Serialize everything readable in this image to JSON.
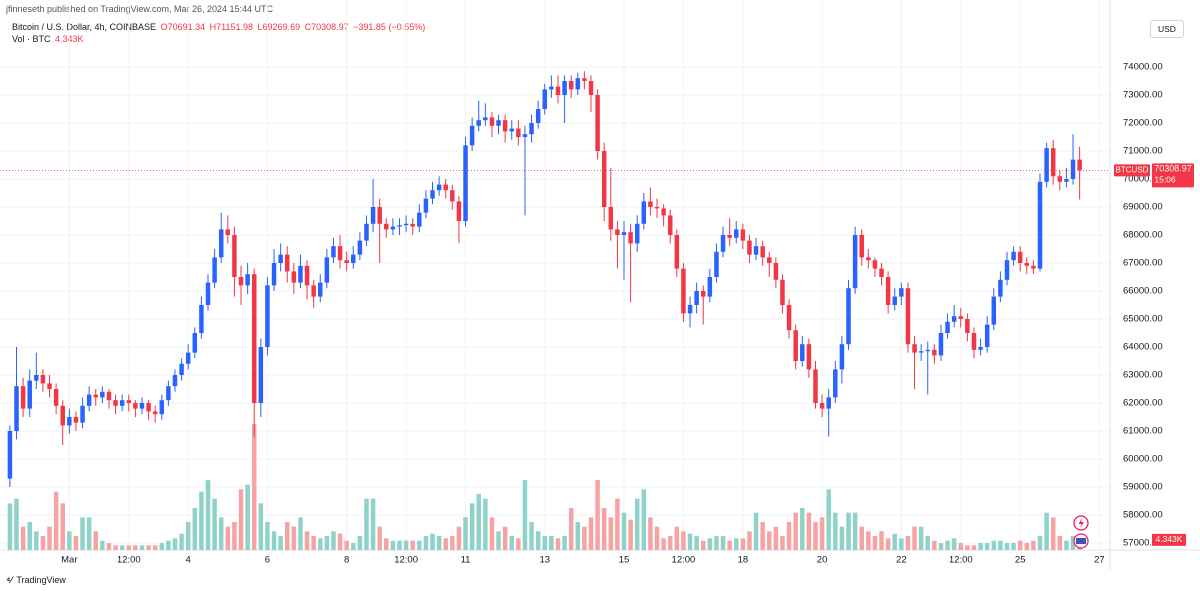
{
  "chart_data": {
    "type": "candlestick",
    "attribution": "jfinneseth published on TradingView.com, Mar 26, 2024 15:44 UTC",
    "title": "Bitcoin / U.S. Dollar, 4h, COINBASE",
    "ohlc_text": [
      "O70691.34",
      "H71151.98",
      "L69269.69",
      "C70308.97",
      "−391.85 (−0.55%)"
    ],
    "volume_title": "Vol · BTC",
    "volume_label": "4.343K",
    "currency": "USD",
    "symbol": "BTCUSD",
    "last_price_label": "70308.97",
    "countdown": "15:06",
    "footer": "TradingView",
    "up_color": "#2962ff",
    "down_color": "#f23645",
    "volume_up_color": "#8fd3c8",
    "volume_down_color": "#f5a3a3",
    "grid": true,
    "xlim": [
      -1.5,
      166.6
    ],
    "ylim": [
      56750,
      76036
    ],
    "volume_lim": [
      0,
      60
    ],
    "yticks": [
      {
        "value": 57000,
        "label": "57000.00"
      },
      {
        "value": 58000,
        "label": "58000.00"
      },
      {
        "value": 59000,
        "label": "59000.00"
      },
      {
        "value": 60000,
        "label": "60000.00"
      },
      {
        "value": 61000,
        "label": "61000.00"
      },
      {
        "value": 62000,
        "label": "62000.00"
      },
      {
        "value": 63000,
        "label": "63000.00"
      },
      {
        "value": 64000,
        "label": "64000.00"
      },
      {
        "value": 65000,
        "label": "65000.00"
      },
      {
        "value": 66000,
        "label": "66000.00"
      },
      {
        "value": 67000,
        "label": "67000.00"
      },
      {
        "value": 68000,
        "label": "68000.00"
      },
      {
        "value": 69000,
        "label": "69000.00"
      },
      {
        "value": 70000,
        "label": "70000.00"
      },
      {
        "value": 71000,
        "label": "71000.00"
      },
      {
        "value": 72000,
        "label": "72000.00"
      },
      {
        "value": 73000,
        "label": "73000.00"
      },
      {
        "value": 74000,
        "label": "74000.00"
      }
    ],
    "xticks": [
      {
        "value": 9,
        "label": "Mar"
      },
      {
        "value": 18,
        "label": "12:00"
      },
      {
        "value": 27,
        "label": "4"
      },
      {
        "value": 39,
        "label": "6"
      },
      {
        "value": 51,
        "label": "8"
      },
      {
        "value": 60,
        "label": "12:00"
      },
      {
        "value": 69,
        "label": "11"
      },
      {
        "value": 81,
        "label": "13"
      },
      {
        "value": 93,
        "label": "15"
      },
      {
        "value": 102,
        "label": "12:00"
      },
      {
        "value": 111,
        "label": "18"
      },
      {
        "value": 123,
        "label": "20"
      },
      {
        "value": 135,
        "label": "22"
      },
      {
        "value": 144,
        "label": "12:00"
      },
      {
        "value": 153,
        "label": "25"
      },
      {
        "value": 165,
        "label": "27"
      }
    ],
    "open": [
      59300,
      61000,
      62600,
      61800,
      62800,
      63000,
      62700,
      62500,
      61900,
      61200,
      61500,
      61300,
      61900,
      62300,
      62200,
      62400,
      62100,
      61900,
      62100,
      62000,
      61800,
      62000,
      61700,
      61600,
      62100,
      62600,
      63000,
      63400,
      63800,
      64500,
      65500,
      66300,
      67200,
      68200,
      68000,
      66500,
      66200,
      66600,
      62000,
      64000,
      66200,
      67000,
      67300,
      66700,
      66300,
      66900,
      66200,
      65800,
      66300,
      67200,
      67600,
      67100,
      67000,
      67300,
      67800,
      68400,
      69000,
      68400,
      68200,
      68300,
      68350,
      68400,
      68300,
      68800,
      69300,
      69600,
      69800,
      69600,
      69200,
      68500,
      71200,
      71900,
      72100,
      72200,
      71900,
      72100,
      71700,
      71800,
      71500,
      71600,
      72000,
      72500,
      73200,
      73300,
      73000,
      73500,
      73200,
      73600,
      73500,
      73000,
      71000,
      69000,
      68200,
      68000,
      68100,
      67700,
      68400,
      69200,
      69000,
      68950,
      68700,
      68000,
      66800,
      65200,
      65500,
      66000,
      65800,
      66500,
      67400,
      68000,
      67900,
      68200,
      67800,
      67300,
      67600,
      67200,
      67000,
      66400,
      65500,
      64600,
      63500,
      64100,
      63200,
      62000,
      61800,
      62200,
      63200,
      64100,
      66100,
      68000,
      67200,
      67100,
      66800,
      66500,
      65500,
      65800,
      66100,
      64100,
      63800,
      63850,
      63900,
      63700,
      64500,
      64900,
      65100,
      65000,
      64500,
      63900,
      64000,
      64800,
      65800,
      66400,
      67100,
      67400,
      67000,
      66900,
      66800,
      69900,
      71100,
      70100,
      69900,
      70000,
      70691.34
    ],
    "high": [
      61200,
      64000,
      62900,
      63200,
      63800,
      63200,
      63000,
      62700,
      62100,
      61800,
      61700,
      62200,
      62600,
      62500,
      62600,
      62500,
      62300,
      62300,
      62300,
      62100,
      62200,
      62100,
      61900,
      62300,
      62800,
      63200,
      63600,
      64100,
      64700,
      65800,
      66600,
      67500,
      68800,
      68700,
      68300,
      66900,
      67000,
      66800,
      64300,
      66500,
      67500,
      67700,
      67600,
      67000,
      67300,
      67100,
      66400,
      66600,
      67500,
      67900,
      68000,
      67400,
      67600,
      68100,
      68700,
      70000,
      69300,
      68600,
      68600,
      68600,
      68700,
      68600,
      69100,
      69600,
      69900,
      70100,
      70000,
      69800,
      69400,
      71500,
      72200,
      72800,
      72700,
      72400,
      72300,
      72300,
      72100,
      72100,
      71900,
      72300,
      72800,
      73400,
      73700,
      73700,
      73700,
      73700,
      73800,
      73850,
      73700,
      73200,
      71300,
      70400,
      68500,
      68500,
      68400,
      68700,
      69500,
      69700,
      69300,
      69100,
      68900,
      68200,
      67000,
      65800,
      66300,
      66200,
      66800,
      67700,
      68300,
      68600,
      68500,
      68400,
      68000,
      67900,
      67800,
      67400,
      67200,
      66600,
      65700,
      64800,
      64400,
      64300,
      63500,
      62300,
      62500,
      63500,
      64400,
      66400,
      68300,
      68200,
      67500,
      67200,
      67000,
      66700,
      66100,
      66300,
      66300,
      64400,
      64100,
      64200,
      64100,
      64800,
      65200,
      65500,
      65400,
      65200,
      64700,
      64300,
      65100,
      66100,
      66700,
      67400,
      67600,
      67600,
      67200,
      67100,
      70200,
      71300,
      71400,
      70300,
      70400,
      71600,
      71151.98
    ],
    "low": [
      59000,
      60700,
      61500,
      61500,
      62500,
      62400,
      62200,
      61600,
      60500,
      60900,
      61000,
      61100,
      61700,
      61900,
      62000,
      61800,
      61600,
      61700,
      61700,
      61500,
      61600,
      61400,
      61300,
      61400,
      61900,
      62400,
      62800,
      63200,
      63600,
      64300,
      65300,
      66100,
      67000,
      67700,
      65800,
      65500,
      65900,
      60800,
      61500,
      63700,
      66000,
      66700,
      66300,
      65900,
      66100,
      65700,
      65400,
      65600,
      66100,
      67000,
      66800,
      66700,
      66800,
      67100,
      67600,
      68100,
      67000,
      67900,
      68000,
      68000,
      68100,
      68000,
      68100,
      68600,
      69100,
      69400,
      69300,
      68900,
      67700,
      68300,
      71000,
      71700,
      71900,
      71500,
      71600,
      71300,
      71400,
      71200,
      68700,
      71300,
      71800,
      72300,
      72900,
      72700,
      72000,
      72900,
      73000,
      73200,
      72400,
      70700,
      68500,
      67800,
      66800,
      66400,
      65600,
      67400,
      68200,
      68700,
      68600,
      68300,
      67700,
      66500,
      64900,
      64700,
      65200,
      64800,
      65600,
      66300,
      67200,
      67600,
      67700,
      67500,
      67000,
      67100,
      66900,
      66500,
      66100,
      65200,
      64300,
      63200,
      63300,
      62900,
      61800,
      61500,
      60800,
      62000,
      62700,
      63900,
      65900,
      66900,
      66800,
      66500,
      66200,
      65200,
      65300,
      65500,
      63800,
      62500,
      63500,
      62300,
      63400,
      63500,
      64300,
      64700,
      64700,
      64200,
      63600,
      63700,
      63800,
      64600,
      65600,
      66200,
      66900,
      66700,
      66600,
      66600,
      66700,
      69700,
      69800,
      69600,
      69700,
      69800,
      69269.69
    ],
    "close": [
      61000,
      62600,
      61800,
      62800,
      63000,
      62700,
      62500,
      61900,
      61200,
      61500,
      61300,
      61900,
      62300,
      62200,
      62400,
      62100,
      61900,
      62100,
      62000,
      61800,
      62000,
      61700,
      61600,
      62100,
      62600,
      63000,
      63400,
      63800,
      64500,
      65500,
      66300,
      67200,
      68200,
      68000,
      66500,
      66200,
      66600,
      62000,
      64000,
      66200,
      67000,
      67300,
      66700,
      66300,
      66900,
      66200,
      65800,
      66300,
      67200,
      67600,
      67100,
      67000,
      67300,
      67800,
      68400,
      69000,
      68400,
      68200,
      68300,
      68350,
      68400,
      68300,
      68800,
      69300,
      69600,
      69800,
      69600,
      69200,
      68500,
      71200,
      71900,
      72100,
      72200,
      71900,
      72100,
      71700,
      71800,
      71500,
      71600,
      72000,
      72500,
      73200,
      73300,
      73000,
      73500,
      73200,
      73600,
      73500,
      73000,
      71000,
      69000,
      68200,
      68000,
      68100,
      67700,
      68400,
      69200,
      69000,
      68950,
      68700,
      68000,
      66800,
      65200,
      65500,
      66000,
      65800,
      66500,
      67400,
      68000,
      67900,
      68200,
      67800,
      67300,
      67600,
      67200,
      67000,
      66400,
      65500,
      64600,
      63500,
      64100,
      63200,
      62000,
      61800,
      62200,
      63200,
      64100,
      66100,
      68000,
      67200,
      67100,
      66800,
      66500,
      65500,
      65800,
      66100,
      64100,
      63800,
      63850,
      63900,
      63700,
      64500,
      64900,
      65100,
      65000,
      64500,
      63900,
      64000,
      64800,
      65800,
      66400,
      67100,
      67400,
      67000,
      66900,
      66800,
      69900,
      71100,
      70100,
      69900,
      70000,
      70691.34,
      70308.97
    ],
    "volume": [
      20,
      22,
      10,
      12,
      8,
      6,
      10,
      25,
      20,
      8,
      6,
      14,
      14,
      8,
      4,
      3,
      2,
      2,
      2,
      2,
      2,
      2,
      2,
      3,
      4,
      5,
      7,
      12,
      18,
      25,
      30,
      22,
      14,
      10,
      12,
      26,
      28,
      54,
      20,
      12,
      8,
      6,
      12,
      10,
      14,
      8,
      6,
      5,
      6,
      8,
      7,
      4,
      3,
      6,
      22,
      22,
      10,
      5,
      4,
      4,
      4,
      4,
      4,
      6,
      7,
      6,
      5,
      6,
      10,
      14,
      20,
      24,
      22,
      14,
      8,
      10,
      6,
      5,
      30,
      12,
      8,
      6,
      6,
      5,
      6,
      18,
      12,
      10,
      14,
      30,
      18,
      14,
      22,
      16,
      13,
      22,
      26,
      14,
      10,
      5,
      6,
      10,
      8,
      7,
      6,
      4,
      5,
      6,
      6,
      4,
      5,
      5,
      8,
      16,
      12,
      8,
      10,
      6,
      12,
      16,
      18,
      16,
      12,
      14,
      26,
      16,
      10,
      16,
      16,
      10,
      8,
      6,
      8,
      5,
      7,
      5,
      6,
      10,
      10,
      6,
      4,
      3,
      4,
      5,
      3,
      2,
      2,
      3,
      3,
      4,
      4,
      3,
      3,
      4,
      3,
      4,
      6,
      16,
      14,
      6,
      4,
      6,
      4.343
    ]
  }
}
